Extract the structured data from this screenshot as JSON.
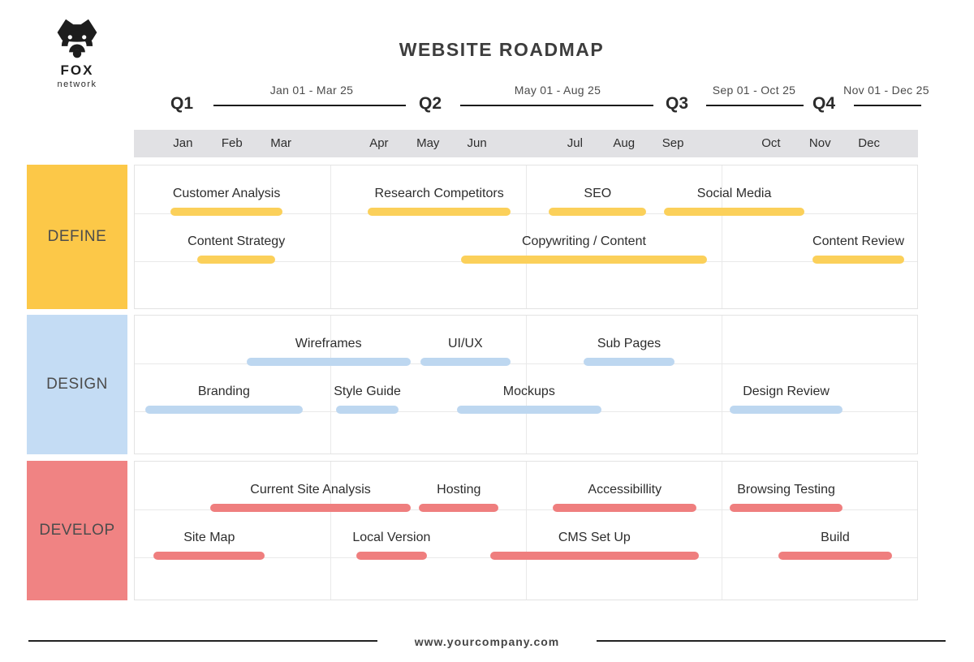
{
  "brand": {
    "name": "FOX",
    "subtitle": "network"
  },
  "title": "WEBSITE ROADMAP",
  "footer": {
    "url": "www.yourcompany.com"
  },
  "months": [
    "Jan",
    "Feb",
    "Mar",
    "Apr",
    "May",
    "Jun",
    "Jul",
    "Aug",
    "Sep",
    "Oct",
    "Nov",
    "Dec"
  ],
  "quarters": [
    {
      "label": "Q1",
      "range": "Jan 01 - Mar 25"
    },
    {
      "label": "Q2",
      "range": "May 01 - Aug 25"
    },
    {
      "label": "Q3",
      "range": "Sep 01 - Oct 25"
    },
    {
      "label": "Q4",
      "range": "Nov 01 - Dec 25"
    }
  ],
  "colors": {
    "define_block": "#FCC848",
    "define_bar": "#FBD05A",
    "design_block": "#C4DCF4",
    "design_bar": "#BDD7F0",
    "develop_block": "#F08383",
    "develop_bar": "#EF7E7E",
    "months_bg": "#E1E1E4",
    "header_line": "#1B1B1B",
    "grid_line": "#E9E9E9"
  },
  "chart_data": {
    "type": "bar",
    "subtype": "gantt-roadmap",
    "title": "WEBSITE ROADMAP",
    "x_axis": {
      "unit": "month",
      "range": [
        0,
        12
      ],
      "tick_labels": [
        "Jan",
        "Feb",
        "Mar",
        "Apr",
        "May",
        "Jun",
        "Jul",
        "Aug",
        "Sep",
        "Oct",
        "Nov",
        "Dec"
      ]
    },
    "legend": "none",
    "grid": "on",
    "series": [
      {
        "name": "DEFINE",
        "block_color": "#FCC848",
        "bar_color": "#FBD05A",
        "tasks": [
          {
            "label": "Customer Analysis",
            "row": 0,
            "start": 0.55,
            "end": 2.26
          },
          {
            "label": "Research Competitors",
            "row": 0,
            "start": 3.57,
            "end": 5.75
          },
          {
            "label": "SEO",
            "row": 0,
            "start": 6.34,
            "end": 7.83
          },
          {
            "label": "Social Media",
            "row": 0,
            "start": 8.1,
            "end": 10.25
          },
          {
            "label": "Content Strategy",
            "row": 1,
            "start": 0.96,
            "end": 2.15
          },
          {
            "label": "Copywriting / Content",
            "row": 1,
            "start": 4.99,
            "end": 8.76
          },
          {
            "label": "Content Review",
            "row": 1,
            "start": 10.37,
            "end": 11.78
          }
        ]
      },
      {
        "name": "DESIGN",
        "block_color": "#C4DCF4",
        "bar_color": "#BDD7F0",
        "tasks": [
          {
            "label": "Wireframes",
            "row": 0,
            "start": 1.71,
            "end": 4.22
          },
          {
            "label": "UI/UX",
            "row": 0,
            "start": 4.37,
            "end": 5.75
          },
          {
            "label": "Sub Pages",
            "row": 0,
            "start": 6.87,
            "end": 8.26
          },
          {
            "label": "Branding",
            "row": 1,
            "start": 0.16,
            "end": 2.57
          },
          {
            "label": "Style Guide",
            "row": 1,
            "start": 3.08,
            "end": 4.04
          },
          {
            "label": "Mockups",
            "row": 1,
            "start": 4.93,
            "end": 7.14
          },
          {
            "label": "Design Review",
            "row": 1,
            "start": 9.11,
            "end": 10.83
          }
        ]
      },
      {
        "name": "DEVELOP",
        "block_color": "#F08383",
        "bar_color": "#EF7E7E",
        "tasks": [
          {
            "label": "Current Site Analysis",
            "row": 0,
            "start": 1.16,
            "end": 4.22
          },
          {
            "label": "Hosting",
            "row": 0,
            "start": 4.35,
            "end": 5.57
          },
          {
            "label": "Accessibillity",
            "row": 0,
            "start": 6.4,
            "end": 8.6
          },
          {
            "label": "Browsing Testing",
            "row": 0,
            "start": 9.11,
            "end": 10.83
          },
          {
            "label": "Site Map",
            "row": 1,
            "start": 0.29,
            "end": 1.99
          },
          {
            "label": "Local Version",
            "row": 1,
            "start": 3.39,
            "end": 4.47
          },
          {
            "label": "CMS Set Up",
            "row": 1,
            "start": 5.44,
            "end": 8.63
          },
          {
            "label": "Build",
            "row": 1,
            "start": 9.85,
            "end": 11.59
          }
        ]
      }
    ]
  }
}
